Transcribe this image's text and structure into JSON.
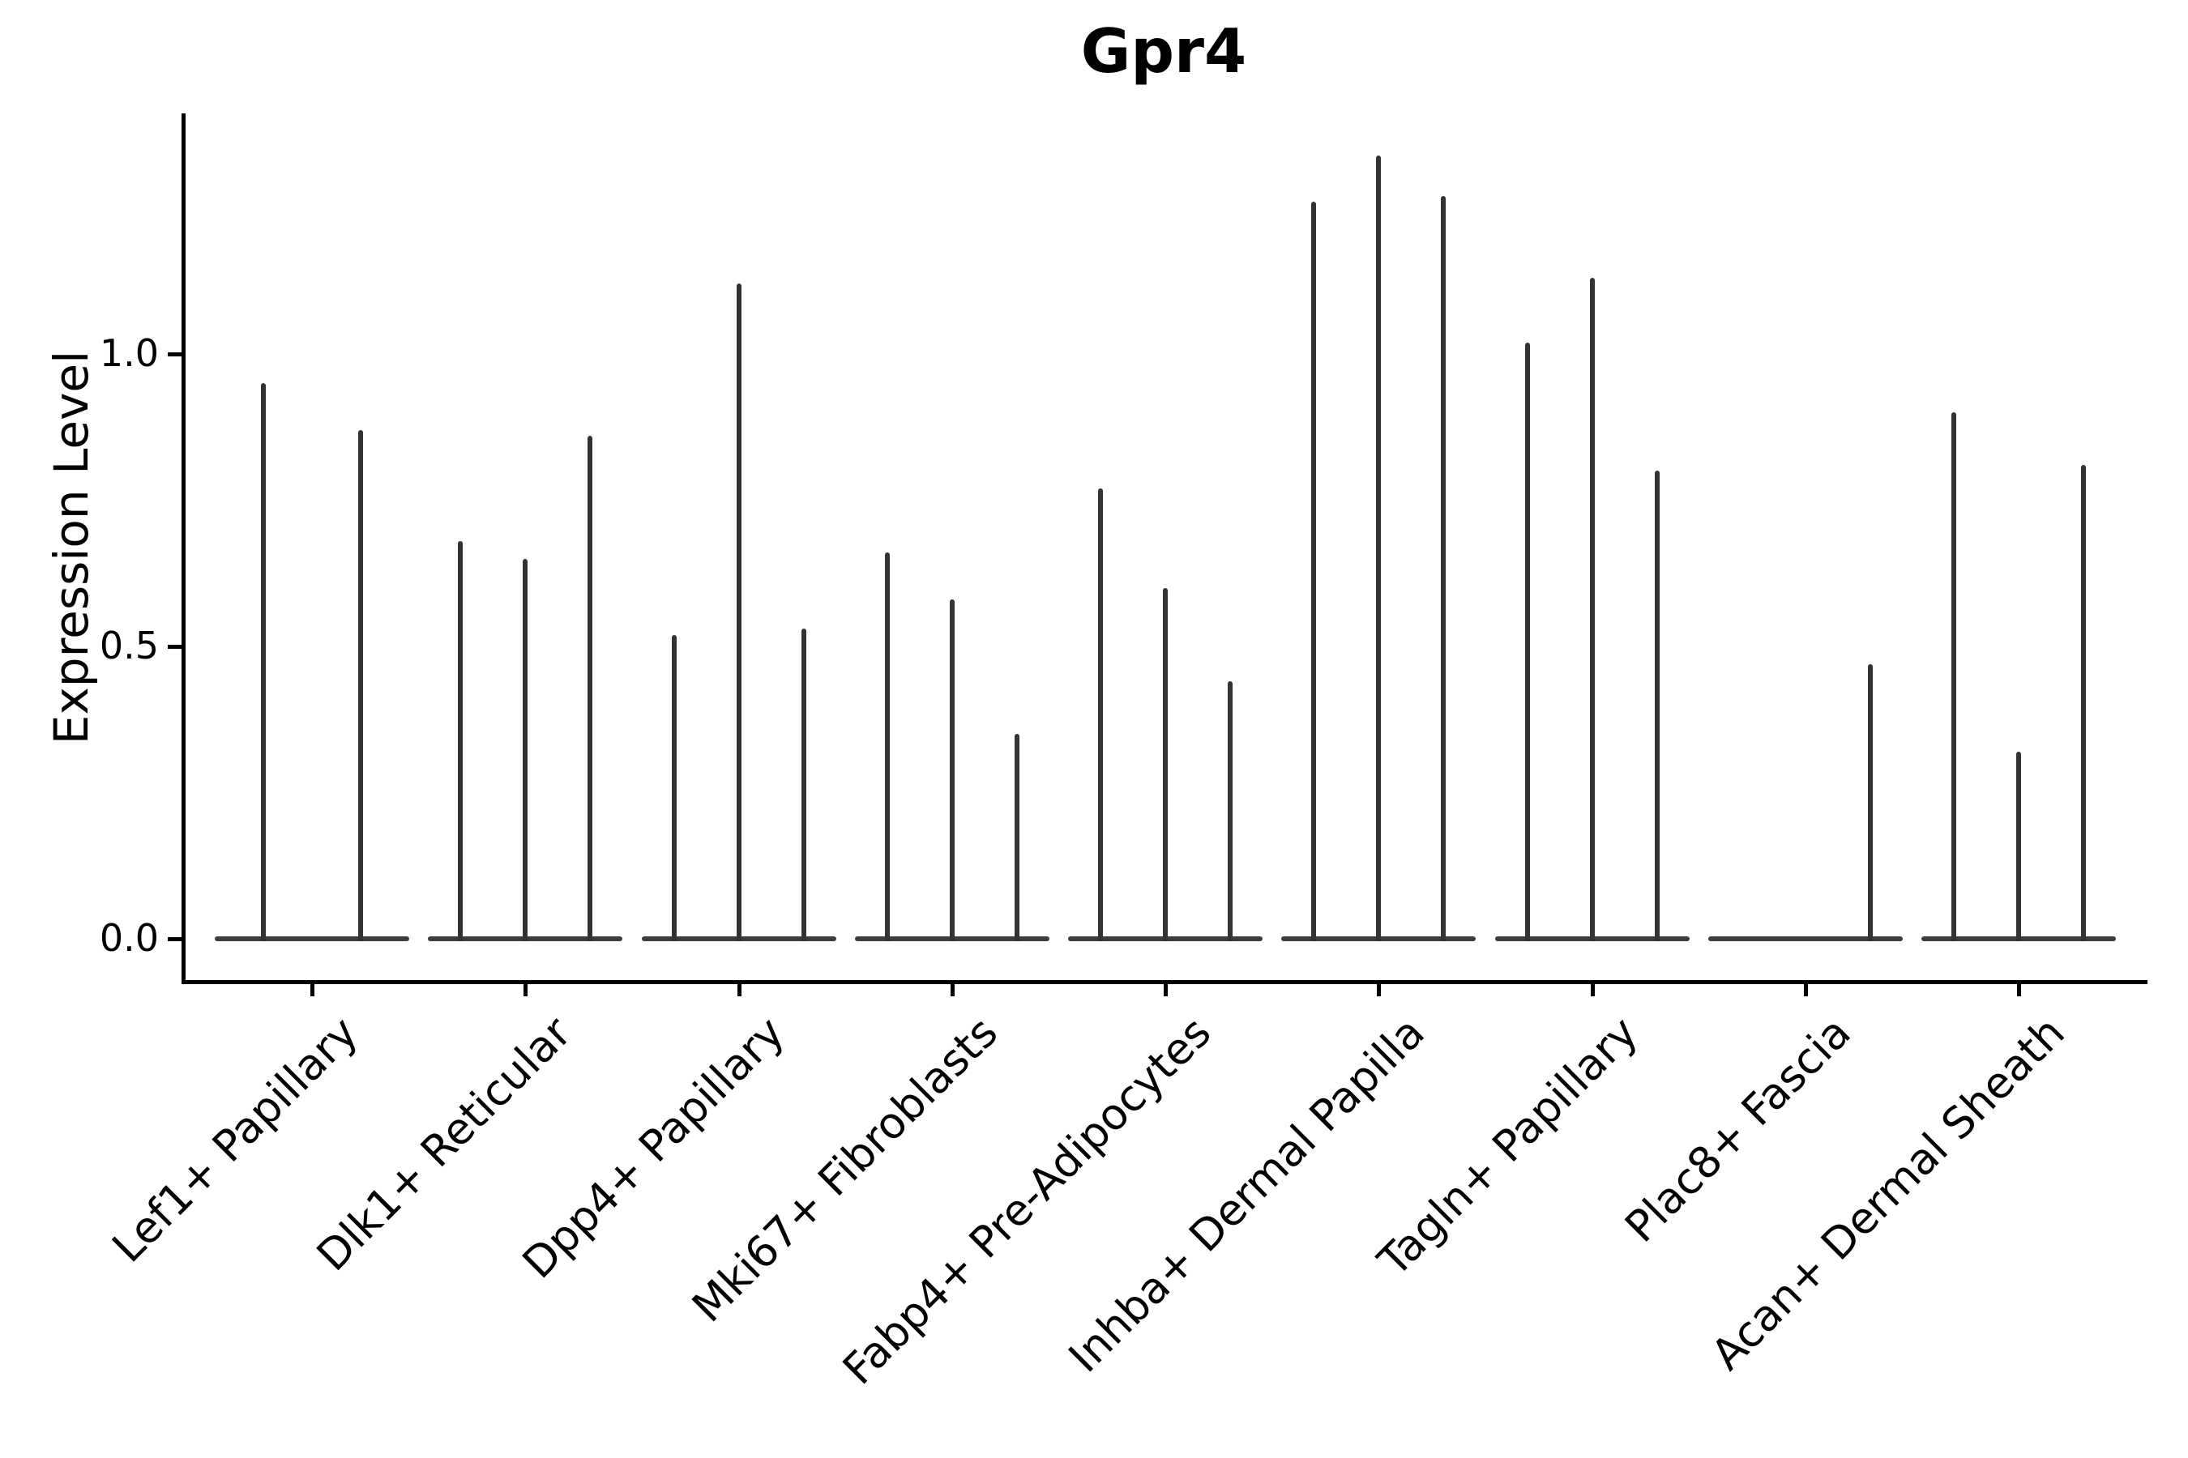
{
  "figure": {
    "title": "Gpr4",
    "ylabel": "Expression Level"
  },
  "chart_data": {
    "type": "violin",
    "title": "Gpr4",
    "xlabel": "",
    "ylabel": "Expression Level",
    "ytick_labels": [
      "0.0",
      "0.5",
      "1.0"
    ],
    "ytick_values": [
      0.0,
      0.5,
      1.0
    ],
    "ylim": [
      -0.07,
      1.41
    ],
    "grid": false,
    "legend_position": "none",
    "categories": [
      "Lef1+ Papillary",
      "Dlk1+ Reticular",
      "Dpp4+ Papillary",
      "Mki67+ Fibroblasts",
      "Fabp4+ Pre-Adipocytes",
      "Inhba+ Dermal Papilla",
      "Tagln+ Papillary",
      "Plac8+ Fascia",
      "Acan+ Dermal Sheath"
    ],
    "violins": [
      {
        "category": "Lef1+ Papillary",
        "violin_max_values": [
          0.95,
          0.87
        ]
      },
      {
        "category": "Dlk1+ Reticular",
        "violin_max_values": [
          0.68,
          0.65,
          0.86
        ]
      },
      {
        "category": "Dpp4+ Papillary",
        "violin_max_values": [
          0.52,
          1.12,
          0.53
        ]
      },
      {
        "category": "Mki67+ Fibroblasts",
        "violin_max_values": [
          0.66,
          0.58,
          0.35
        ]
      },
      {
        "category": "Fabp4+ Pre-Adipocytes",
        "violin_max_values": [
          0.77,
          0.6,
          0.44
        ]
      },
      {
        "category": "Inhba+ Dermal Papilla",
        "violin_max_values": [
          1.26,
          1.34,
          1.27
        ]
      },
      {
        "category": "Tagln+ Papillary",
        "violin_max_values": [
          1.02,
          1.13,
          0.8
        ]
      },
      {
        "category": "Plac8+ Fascia",
        "violin_max_values": [
          0.0,
          0.0,
          0.47
        ]
      },
      {
        "category": "Acan+ Dermal Sheath",
        "violin_max_values": [
          0.9,
          0.32,
          0.81
        ]
      }
    ],
    "style": {
      "violin_color": "#333333",
      "baseline_color": "#3d3d3d",
      "axis_color": "#000000",
      "text_color": "#000000",
      "background_color": "#ffffff"
    }
  }
}
